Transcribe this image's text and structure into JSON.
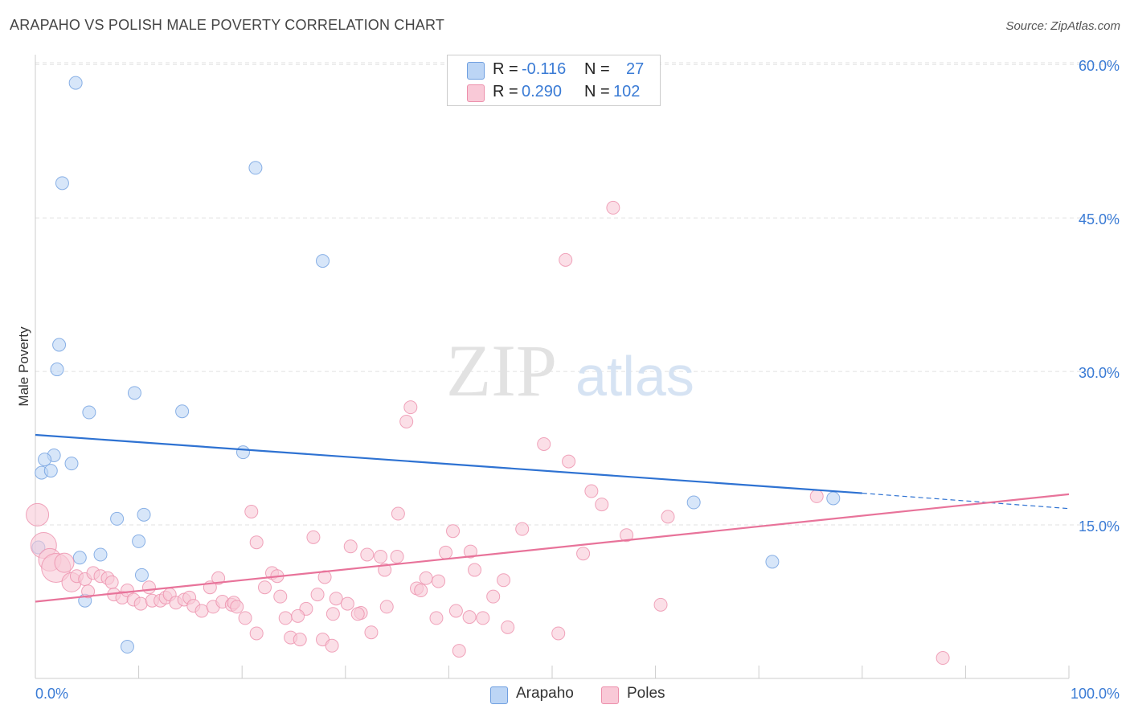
{
  "title": "ARAPAHO VS POLISH MALE POVERTY CORRELATION CHART",
  "source": "Source: ZipAtlas.com",
  "watermark": {
    "zip": "ZIP",
    "atlas": "atlas"
  },
  "legend": {
    "rows": [
      {
        "r_label": "R =",
        "r_value": "-0.116",
        "n_label": "N =",
        "n_value": "27",
        "color": "#a9c8f0",
        "border": "#6f9fe0"
      },
      {
        "r_label": "R =",
        "r_value": "0.290",
        "n_label": "N =",
        "n_value": "102",
        "color": "#f8c0d0",
        "border": "#ec8fab"
      }
    ]
  },
  "bottom_legend": [
    {
      "label": "Arapaho",
      "color": "#bcd5f5",
      "border": "#6f9fe0"
    },
    {
      "label": "Poles",
      "color": "#f9c9d7",
      "border": "#ec8fab"
    }
  ],
  "chart_data": {
    "type": "scatter",
    "title": "ARAPAHO VS POLISH MALE POVERTY CORRELATION CHART",
    "xlabel": "",
    "ylabel": "Male Poverty",
    "xlim": [
      0,
      100
    ],
    "ylim": [
      0,
      62
    ],
    "x_tick_labels": [
      "0.0%",
      "100.0%"
    ],
    "y_ticks": [
      15,
      30,
      45,
      60
    ],
    "y_tick_labels": [
      "15.0%",
      "30.0%",
      "45.0%",
      "60.0%"
    ],
    "grid": true,
    "legend_position": "top-center",
    "series": [
      {
        "name": "Arapaho",
        "color": "#6f9fe0",
        "fill": "#bcd5f5",
        "trend": {
          "x0": 0,
          "y0": 23.8,
          "x1": 80,
          "y1": 18.1,
          "dash_to_x": 100,
          "dash_to_y": 16.6,
          "color": "#2e72d2"
        },
        "points": [
          {
            "x": 3.9,
            "y": 58.2
          },
          {
            "x": 2.6,
            "y": 48.4
          },
          {
            "x": 21.3,
            "y": 49.9
          },
          {
            "x": 27.8,
            "y": 40.8
          },
          {
            "x": 2.3,
            "y": 32.6
          },
          {
            "x": 2.1,
            "y": 30.2
          },
          {
            "x": 9.6,
            "y": 27.9
          },
          {
            "x": 5.2,
            "y": 26.0
          },
          {
            "x": 14.2,
            "y": 26.1
          },
          {
            "x": 20.1,
            "y": 22.1
          },
          {
            "x": 1.8,
            "y": 21.8
          },
          {
            "x": 0.9,
            "y": 21.4
          },
          {
            "x": 3.5,
            "y": 21.0
          },
          {
            "x": 0.6,
            "y": 20.1
          },
          {
            "x": 1.5,
            "y": 20.3
          },
          {
            "x": 7.9,
            "y": 15.6
          },
          {
            "x": 10.5,
            "y": 16.0
          },
          {
            "x": 10.0,
            "y": 13.4
          },
          {
            "x": 0.3,
            "y": 12.8
          },
          {
            "x": 6.3,
            "y": 12.1
          },
          {
            "x": 4.3,
            "y": 11.8
          },
          {
            "x": 10.3,
            "y": 10.1
          },
          {
            "x": 4.8,
            "y": 7.6
          },
          {
            "x": 8.9,
            "y": 3.1
          },
          {
            "x": 63.7,
            "y": 17.2
          },
          {
            "x": 77.2,
            "y": 17.6
          },
          {
            "x": 71.3,
            "y": 11.4
          }
        ]
      },
      {
        "name": "Poles",
        "color": "#ec8fab",
        "fill": "#f9c9d7",
        "trend": {
          "x0": 0,
          "y0": 7.5,
          "x1": 100,
          "y1": 18.0,
          "color": "#e8739a"
        },
        "points": [
          {
            "x": 55.9,
            "y": 46.0
          },
          {
            "x": 51.3,
            "y": 40.9
          },
          {
            "x": 36.3,
            "y": 26.5
          },
          {
            "x": 35.9,
            "y": 25.1
          },
          {
            "x": 49.2,
            "y": 22.9
          },
          {
            "x": 51.6,
            "y": 21.2
          },
          {
            "x": 53.8,
            "y": 18.3
          },
          {
            "x": 54.8,
            "y": 17.0
          },
          {
            "x": 61.2,
            "y": 15.8
          },
          {
            "x": 75.6,
            "y": 17.8
          },
          {
            "x": 0.2,
            "y": 16.0,
            "r": 14
          },
          {
            "x": 20.9,
            "y": 16.3
          },
          {
            "x": 35.1,
            "y": 16.1
          },
          {
            "x": 47.1,
            "y": 14.6
          },
          {
            "x": 40.4,
            "y": 14.4
          },
          {
            "x": 57.2,
            "y": 14.0
          },
          {
            "x": 26.9,
            "y": 13.8
          },
          {
            "x": 21.4,
            "y": 13.3
          },
          {
            "x": 0.8,
            "y": 13.0,
            "r": 16
          },
          {
            "x": 30.5,
            "y": 12.9
          },
          {
            "x": 32.1,
            "y": 12.1
          },
          {
            "x": 33.4,
            "y": 11.9
          },
          {
            "x": 35.0,
            "y": 11.9
          },
          {
            "x": 39.7,
            "y": 12.3
          },
          {
            "x": 42.1,
            "y": 12.4
          },
          {
            "x": 53.0,
            "y": 12.2
          },
          {
            "x": 1.4,
            "y": 11.6,
            "r": 14
          },
          {
            "x": 2.0,
            "y": 10.8,
            "r": 18
          },
          {
            "x": 2.8,
            "y": 11.3,
            "r": 12
          },
          {
            "x": 33.8,
            "y": 10.6
          },
          {
            "x": 42.5,
            "y": 10.6
          },
          {
            "x": 3.5,
            "y": 9.4,
            "r": 12
          },
          {
            "x": 4.0,
            "y": 10.0
          },
          {
            "x": 4.8,
            "y": 9.7
          },
          {
            "x": 5.6,
            "y": 10.3
          },
          {
            "x": 6.3,
            "y": 10.0
          },
          {
            "x": 7.0,
            "y": 9.8
          },
          {
            "x": 7.4,
            "y": 9.4
          },
          {
            "x": 17.7,
            "y": 9.8
          },
          {
            "x": 22.9,
            "y": 10.3
          },
          {
            "x": 23.4,
            "y": 10.0
          },
          {
            "x": 28.0,
            "y": 9.9
          },
          {
            "x": 37.8,
            "y": 9.8
          },
          {
            "x": 39.0,
            "y": 9.5
          },
          {
            "x": 45.3,
            "y": 9.6
          },
          {
            "x": 5.1,
            "y": 8.5
          },
          {
            "x": 7.6,
            "y": 8.2
          },
          {
            "x": 8.4,
            "y": 7.9
          },
          {
            "x": 8.9,
            "y": 8.6
          },
          {
            "x": 9.5,
            "y": 7.7
          },
          {
            "x": 10.2,
            "y": 7.3
          },
          {
            "x": 11.0,
            "y": 8.9
          },
          {
            "x": 11.3,
            "y": 7.6
          },
          {
            "x": 12.1,
            "y": 7.6
          },
          {
            "x": 12.6,
            "y": 7.9
          },
          {
            "x": 13.0,
            "y": 8.2
          },
          {
            "x": 13.6,
            "y": 7.4
          },
          {
            "x": 14.4,
            "y": 7.7
          },
          {
            "x": 14.9,
            "y": 7.9
          },
          {
            "x": 15.3,
            "y": 7.1
          },
          {
            "x": 16.1,
            "y": 6.6
          },
          {
            "x": 16.9,
            "y": 8.9
          },
          {
            "x": 17.2,
            "y": 7.0
          },
          {
            "x": 18.1,
            "y": 7.5
          },
          {
            "x": 19.0,
            "y": 7.2
          },
          {
            "x": 19.2,
            "y": 7.4
          },
          {
            "x": 19.5,
            "y": 7.0
          },
          {
            "x": 22.2,
            "y": 8.9
          },
          {
            "x": 23.7,
            "y": 8.0
          },
          {
            "x": 26.2,
            "y": 6.8
          },
          {
            "x": 27.3,
            "y": 8.2
          },
          {
            "x": 29.1,
            "y": 7.8
          },
          {
            "x": 30.2,
            "y": 7.3
          },
          {
            "x": 31.5,
            "y": 6.4
          },
          {
            "x": 34.0,
            "y": 7.0
          },
          {
            "x": 36.9,
            "y": 8.8
          },
          {
            "x": 37.3,
            "y": 8.6
          },
          {
            "x": 40.7,
            "y": 6.6
          },
          {
            "x": 44.3,
            "y": 8.0
          },
          {
            "x": 60.5,
            "y": 7.2
          },
          {
            "x": 20.3,
            "y": 5.9
          },
          {
            "x": 24.2,
            "y": 5.9
          },
          {
            "x": 25.4,
            "y": 6.1
          },
          {
            "x": 28.8,
            "y": 6.3
          },
          {
            "x": 31.2,
            "y": 6.3
          },
          {
            "x": 38.8,
            "y": 5.9
          },
          {
            "x": 42.0,
            "y": 6.0
          },
          {
            "x": 43.3,
            "y": 5.9
          },
          {
            "x": 45.7,
            "y": 5.0
          },
          {
            "x": 50.6,
            "y": 4.4
          },
          {
            "x": 21.4,
            "y": 4.4
          },
          {
            "x": 24.7,
            "y": 4.0
          },
          {
            "x": 25.6,
            "y": 3.8
          },
          {
            "x": 27.8,
            "y": 3.8
          },
          {
            "x": 28.7,
            "y": 3.2
          },
          {
            "x": 32.5,
            "y": 4.5
          },
          {
            "x": 41.0,
            "y": 2.7
          },
          {
            "x": 87.8,
            "y": 2.0
          }
        ]
      }
    ]
  }
}
